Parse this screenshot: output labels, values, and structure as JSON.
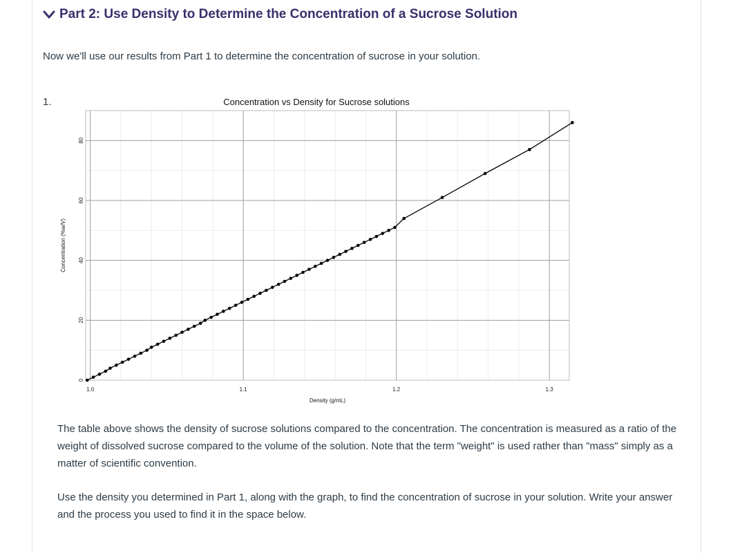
{
  "section": {
    "title": "Part 2: Use Density to Determine the Concentration of a Sucrose Solution",
    "icon": "chevron-down-icon",
    "color": "#3a2f6b"
  },
  "intro": "Now we'll use our results from Part 1 to determine the concentration of sucrose in your solution.",
  "question_number": "1.",
  "chart_data": {
    "type": "line",
    "title": "Concentration vs Density for Sucrose solutions",
    "xlabel": "Density (g/mL)",
    "ylabel": "Concentration (%w/V)",
    "xlim": [
      0.997,
      1.313
    ],
    "ylim": [
      0,
      90
    ],
    "xticks": [
      {
        "value": 1.0,
        "label": "1.0"
      },
      {
        "value": 1.1,
        "label": "1.1"
      },
      {
        "value": 1.2,
        "label": "1.2"
      },
      {
        "value": 1.3,
        "label": "1.3"
      }
    ],
    "yticks": [
      {
        "value": 0,
        "label": "0"
      },
      {
        "value": 20,
        "label": "20"
      },
      {
        "value": 40,
        "label": "40"
      },
      {
        "value": 60,
        "label": "60"
      },
      {
        "value": 80,
        "label": "80"
      }
    ],
    "grid": true,
    "series": [
      {
        "color": "#000000",
        "x": [
          0.998,
          1.002,
          1.006,
          1.01,
          1.013,
          1.017,
          1.021,
          1.025,
          1.029,
          1.033,
          1.037,
          1.04,
          1.044,
          1.048,
          1.052,
          1.056,
          1.06,
          1.064,
          1.068,
          1.072,
          1.075,
          1.079,
          1.083,
          1.087,
          1.091,
          1.095,
          1.099,
          1.103,
          1.107,
          1.111,
          1.115,
          1.119,
          1.123,
          1.127,
          1.131,
          1.135,
          1.139,
          1.143,
          1.147,
          1.151,
          1.155,
          1.159,
          1.163,
          1.167,
          1.171,
          1.175,
          1.179,
          1.183,
          1.187,
          1.191,
          1.195,
          1.199,
          1.205,
          1.23,
          1.258,
          1.287,
          1.315
        ],
        "y": [
          0,
          1,
          2,
          3,
          4,
          5,
          6,
          7,
          8,
          9,
          10,
          11,
          12,
          13,
          14,
          15,
          16,
          17,
          18,
          19,
          20,
          21,
          22,
          23,
          24,
          25,
          26,
          27,
          28,
          29,
          30,
          31,
          32,
          33,
          34,
          35,
          36,
          37,
          38,
          39,
          40,
          41,
          42,
          43,
          44,
          45,
          46,
          47,
          48,
          49,
          50,
          51,
          54,
          61,
          69,
          77,
          86
        ]
      }
    ]
  },
  "paragraph1": "The table above shows the density of sucrose solutions compared to the concentration. The concentration is measured as a ratio of the weight of dissolved sucrose compared to the volume of the solution. Note that the term \"weight\" is used rather than \"mass\" simply as a matter of scientific convention.",
  "paragraph2": "Use the density you determined in Part 1, along with the graph, to find the concentration of sucrose in your solution. Write your answer and the process you used to find it in the space below."
}
